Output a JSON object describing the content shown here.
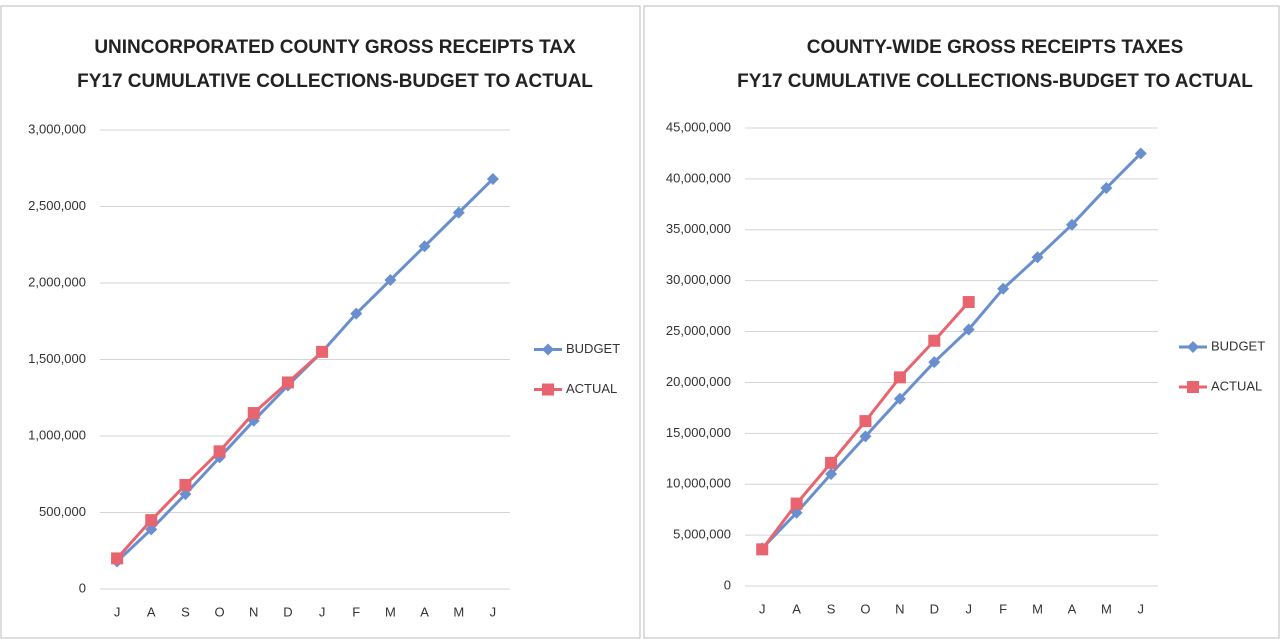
{
  "chart_data": [
    {
      "type": "line",
      "title": [
        "UNINCORPORATED COUNTY GROSS RECEIPTS TAX",
        "FY17 CUMULATIVE COLLECTIONS-BUDGET TO ACTUAL"
      ],
      "categories": [
        "J",
        "A",
        "S",
        "O",
        "N",
        "D",
        "J",
        "F",
        "M",
        "A",
        "M",
        "J"
      ],
      "series": [
        {
          "name": "BUDGET",
          "color": "#6a8fcf",
          "marker": "diamond",
          "values": [
            180000,
            390000,
            620000,
            860000,
            1100000,
            1330000,
            1550000,
            1800000,
            2020000,
            2240000,
            2460000,
            2680000
          ]
        },
        {
          "name": "ACTUAL",
          "color": "#e8646e",
          "marker": "square",
          "values": [
            200000,
            450000,
            680000,
            900000,
            1150000,
            1350000,
            1550000,
            null,
            null,
            null,
            null,
            null
          ]
        }
      ],
      "ylim": [
        0,
        3000000
      ],
      "yticks": [
        0,
        {
          "value": 500000,
          "label": "500,000"
        },
        {
          "value": 1000000,
          "label": "1,000,000"
        },
        {
          "value": 1500000,
          "label": "1,500,000"
        },
        {
          "value": 2000000,
          "label": "2,000,000"
        },
        {
          "value": 2500000,
          "label": "2,500,000"
        },
        {
          "value": 3000000,
          "label": "3,000,000"
        }
      ],
      "grid": true,
      "legend": "right"
    },
    {
      "type": "line",
      "title": [
        "COUNTY-WIDE GROSS RECEIPTS TAXES",
        "FY17 CUMULATIVE COLLECTIONS-BUDGET TO ACTUAL"
      ],
      "categories": [
        "J",
        "A",
        "S",
        "O",
        "N",
        "D",
        "J",
        "F",
        "M",
        "A",
        "M",
        "J"
      ],
      "series": [
        {
          "name": "BUDGET",
          "color": "#6a8fcf",
          "marker": "diamond",
          "values": [
            3700000,
            7200000,
            11000000,
            14700000,
            18400000,
            22000000,
            25200000,
            29200000,
            32300000,
            35500000,
            39100000,
            42500000
          ]
        },
        {
          "name": "ACTUAL",
          "color": "#e8646e",
          "marker": "square",
          "values": [
            3600000,
            8100000,
            12100000,
            16200000,
            20500000,
            24100000,
            27900000,
            null,
            null,
            null,
            null,
            null
          ]
        }
      ],
      "ylim": [
        0,
        45000000
      ],
      "yticks": [
        0,
        {
          "value": 5000000,
          "label": "5,000,000"
        },
        {
          "value": 10000000,
          "label": "10,000,000"
        },
        {
          "value": 15000000,
          "label": "15,000,000"
        },
        {
          "value": 20000000,
          "label": "20,000,000"
        },
        {
          "value": 25000000,
          "label": "25,000,000"
        },
        {
          "value": 30000000,
          "label": "30,000,000"
        },
        {
          "value": 35000000,
          "label": "35,000,000"
        },
        {
          "value": 40000000,
          "label": "40,000,000"
        },
        {
          "value": 45000000,
          "label": "45,000,000"
        }
      ],
      "grid": true,
      "legend": "right"
    }
  ]
}
